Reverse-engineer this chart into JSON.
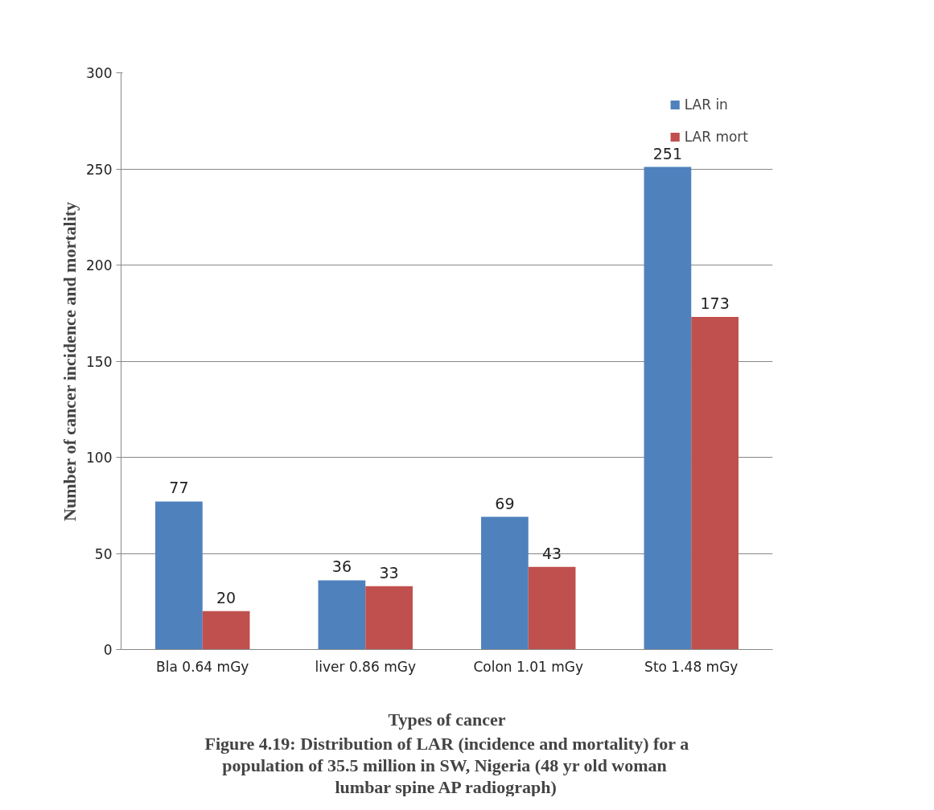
{
  "chart_data": {
    "type": "bar",
    "categories": [
      "Bla 0.64 mGy",
      "liver 0.86 mGy",
      "Colon 1.01 mGy",
      "Sto 1.48 mGy"
    ],
    "series": [
      {
        "name": "LAR in",
        "color": "#4f81bd",
        "values": [
          77,
          36,
          69,
          251
        ]
      },
      {
        "name": "LAR mort",
        "color": "#c0504d",
        "values": [
          20,
          33,
          43,
          173
        ]
      }
    ],
    "xlabel": "Types of cancer",
    "ylabel": "Number of cancer incidence and mortality",
    "ylim": [
      0,
      300
    ],
    "yticks": [
      0,
      50,
      100,
      150,
      200,
      250,
      300
    ],
    "grid": "y",
    "legend": "top right",
    "data_labels": true,
    "annotations": [
      "Figure 4.19: Distribution of LAR (incidence and mortality) for a population of 35.5 million  in SW, Nigeria (48 yr old woman lumbar spine AP radiograph)"
    ]
  }
}
